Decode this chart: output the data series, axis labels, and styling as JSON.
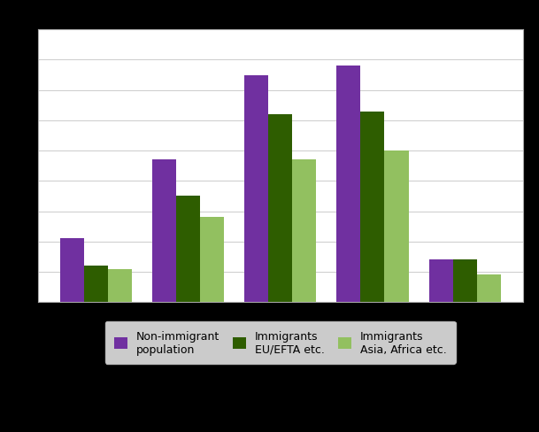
{
  "n_groups": 5,
  "non_immigrant": [
    21,
    47,
    75,
    78,
    14
  ],
  "eu_efta": [
    12,
    35,
    62,
    63,
    14
  ],
  "asia_africa": [
    11,
    28,
    47,
    50,
    9
  ],
  "color_non_immigrant": "#7030a0",
  "color_eu_efta": "#2e5d00",
  "color_asia_africa": "#92c060",
  "legend_non_immigrant": "Non-immigrant\npopulation",
  "legend_eu_efta": "Immigrants\nEU/EFTA etc.",
  "legend_asia_africa": "Immigrants\nAsia, Africa etc.",
  "ylim": [
    0,
    90
  ],
  "bar_width": 0.26,
  "figure_background": "#000000",
  "plot_background": "#ffffff",
  "grid_color": "#cccccc",
  "border_color": "#aaaaaa"
}
